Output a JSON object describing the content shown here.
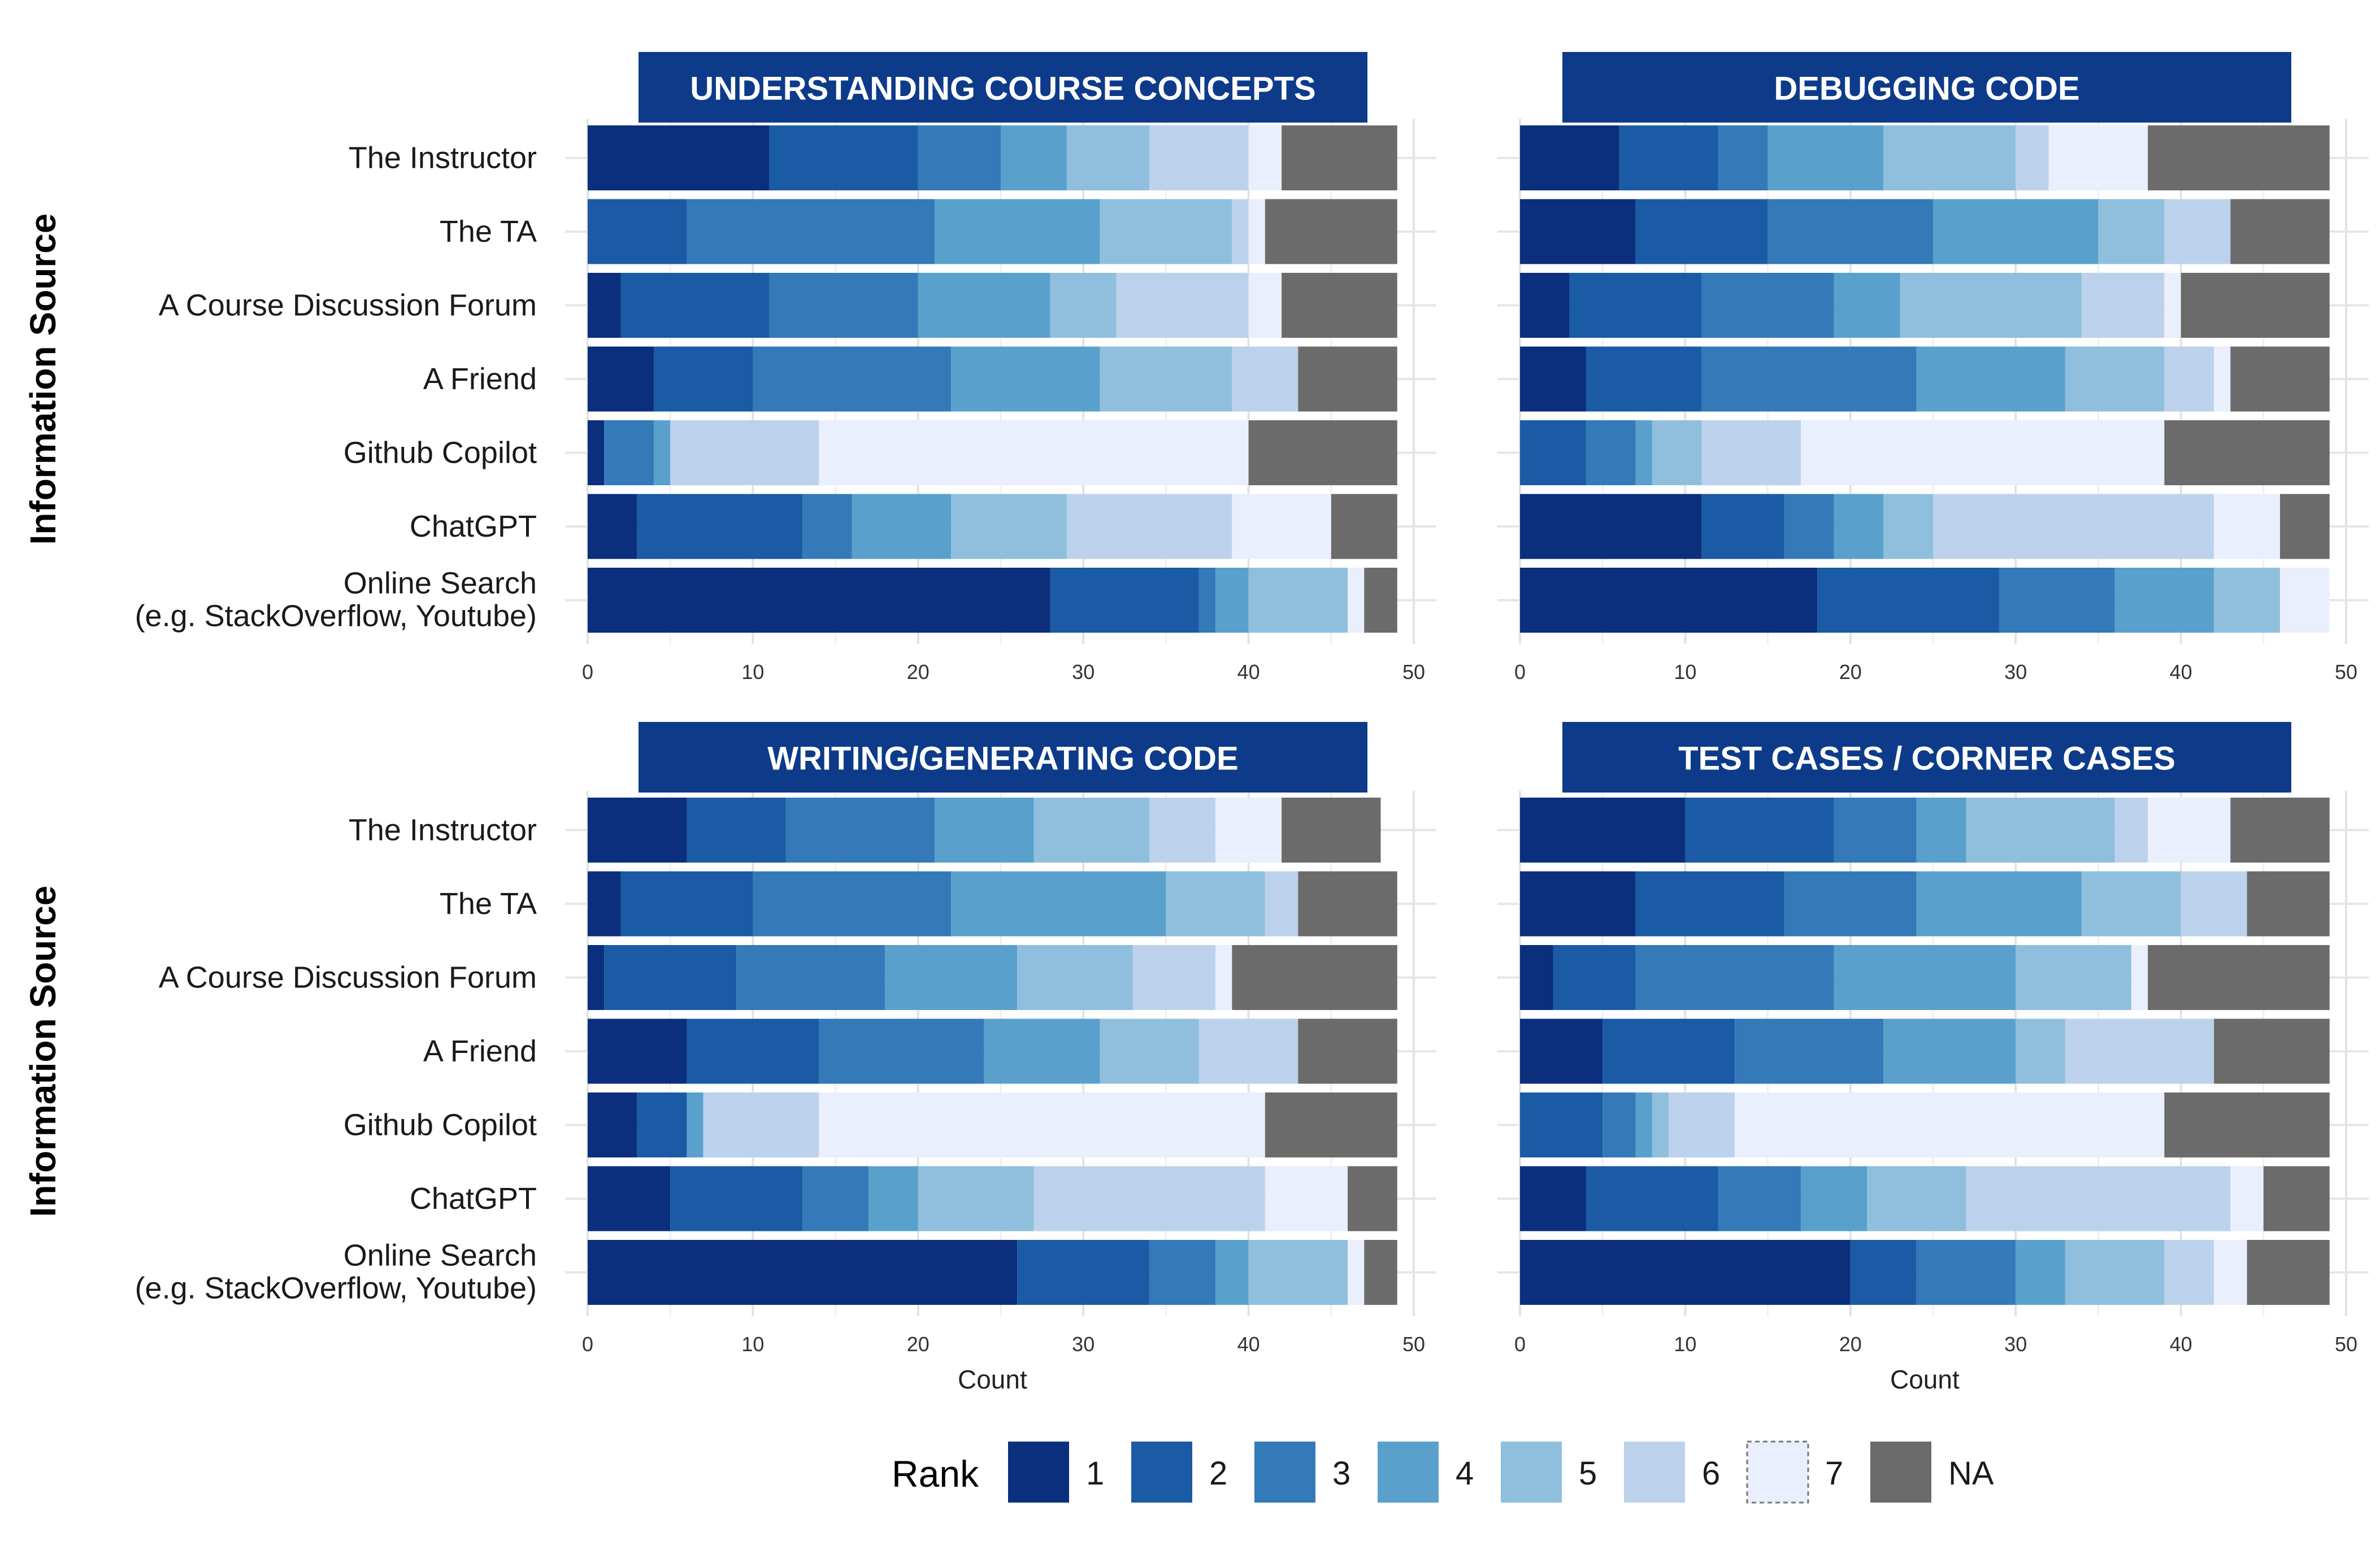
{
  "chart_data": {
    "type": "bar",
    "orientation": "horizontal",
    "stacked": true,
    "ylabel": "Information Source",
    "xlabel": "Count",
    "xlim": [
      0,
      50
    ],
    "x_ticks": [
      0,
      10,
      20,
      30,
      40,
      50
    ],
    "grid": true,
    "legend": {
      "title": "Rank",
      "position": "bottom",
      "entries": [
        "1",
        "2",
        "3",
        "4",
        "5",
        "6",
        "7",
        "NA"
      ]
    },
    "colors": [
      "#0b2f7c",
      "#1b5aa5",
      "#3479b8",
      "#5aa0cc",
      "#8fbfdd",
      "#bcd2ec",
      "#e9effc",
      "#6b6b6b"
    ],
    "panel_header_color": "#0d3b8a",
    "categories": [
      [
        "The Instructor"
      ],
      [
        "The TA"
      ],
      [
        "A Course Discussion Forum"
      ],
      [
        "A Friend"
      ],
      [
        "Github Copilot"
      ],
      [
        "ChatGPT"
      ],
      [
        "Online Search",
        "(e.g. StackOverflow, Youtube)"
      ]
    ],
    "panels": [
      {
        "title": "UNDERSTANDING COURSE CONCEPTS",
        "rows": [
          [
            11,
            9,
            5,
            4,
            5,
            6,
            2,
            7
          ],
          [
            0,
            6,
            15,
            10,
            8,
            1,
            1,
            8
          ],
          [
            2,
            9,
            9,
            8,
            4,
            8,
            2,
            7
          ],
          [
            4,
            6,
            12,
            9,
            8,
            4,
            0,
            6
          ],
          [
            1,
            0,
            3,
            1,
            0,
            9,
            26,
            9
          ],
          [
            3,
            10,
            3,
            6,
            7,
            10,
            6,
            4
          ],
          [
            28,
            9,
            1,
            2,
            6,
            0,
            1,
            2
          ]
        ]
      },
      {
        "title": "DEBUGGING CODE",
        "rows": [
          [
            6,
            6,
            3,
            7,
            8,
            2,
            6,
            11
          ],
          [
            7,
            8,
            10,
            10,
            4,
            4,
            0,
            6
          ],
          [
            3,
            8,
            8,
            4,
            11,
            5,
            1,
            9
          ],
          [
            4,
            7,
            13,
            9,
            6,
            3,
            1,
            6
          ],
          [
            0,
            4,
            3,
            1,
            3,
            6,
            22,
            10
          ],
          [
            11,
            5,
            3,
            3,
            3,
            17,
            4,
            3
          ],
          [
            18,
            11,
            7,
            6,
            4,
            0,
            3,
            0
          ]
        ]
      },
      {
        "title": "WRITING/GENERATING CODE",
        "rows": [
          [
            6,
            6,
            9,
            6,
            7,
            4,
            4,
            6
          ],
          [
            2,
            8,
            12,
            13,
            6,
            2,
            0,
            6
          ],
          [
            1,
            8,
            9,
            8,
            7,
            5,
            1,
            10
          ],
          [
            6,
            8,
            10,
            7,
            6,
            6,
            0,
            6
          ],
          [
            3,
            3,
            0,
            1,
            0,
            7,
            27,
            8
          ],
          [
            5,
            8,
            4,
            3,
            7,
            14,
            5,
            3
          ],
          [
            26,
            8,
            4,
            2,
            6,
            0,
            1,
            2
          ]
        ]
      },
      {
        "title": "TEST CASES / CORNER CASES",
        "rows": [
          [
            10,
            9,
            5,
            3,
            9,
            2,
            5,
            6
          ],
          [
            7,
            9,
            8,
            10,
            6,
            4,
            0,
            5
          ],
          [
            2,
            5,
            12,
            11,
            7,
            0,
            1,
            11
          ],
          [
            5,
            8,
            9,
            8,
            3,
            9,
            0,
            7
          ],
          [
            0,
            5,
            2,
            1,
            1,
            4,
            26,
            10
          ],
          [
            4,
            8,
            5,
            4,
            6,
            16,
            2,
            4
          ],
          [
            20,
            4,
            6,
            3,
            6,
            3,
            2,
            5
          ]
        ]
      }
    ]
  }
}
